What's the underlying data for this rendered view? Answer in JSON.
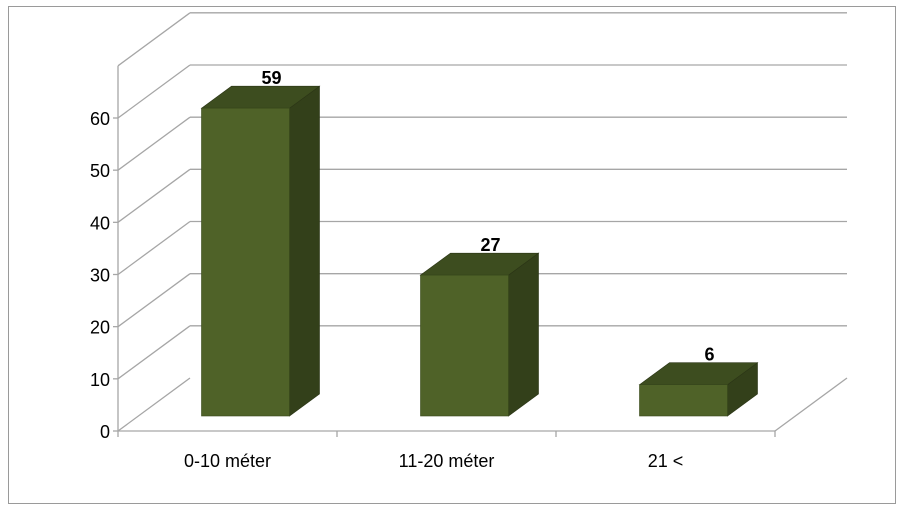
{
  "chart_data": {
    "type": "bar",
    "categories": [
      "0-10 méter",
      "11-20 méter",
      "21 <"
    ],
    "values": [
      59,
      27,
      6
    ],
    "data_labels": [
      "59",
      "27",
      "6"
    ],
    "y_ticks": [
      "0",
      "10",
      "20",
      "30",
      "40",
      "50",
      "60"
    ],
    "ylim": [
      0,
      60
    ],
    "grid": true,
    "legend": "none",
    "style": "3d",
    "colors": {
      "bar_front": "#4f6228",
      "bar_top": "#3d4d1f",
      "bar_side": "#33401a",
      "grid": "#a6a6a6",
      "axis": "#a6a6a6"
    }
  }
}
